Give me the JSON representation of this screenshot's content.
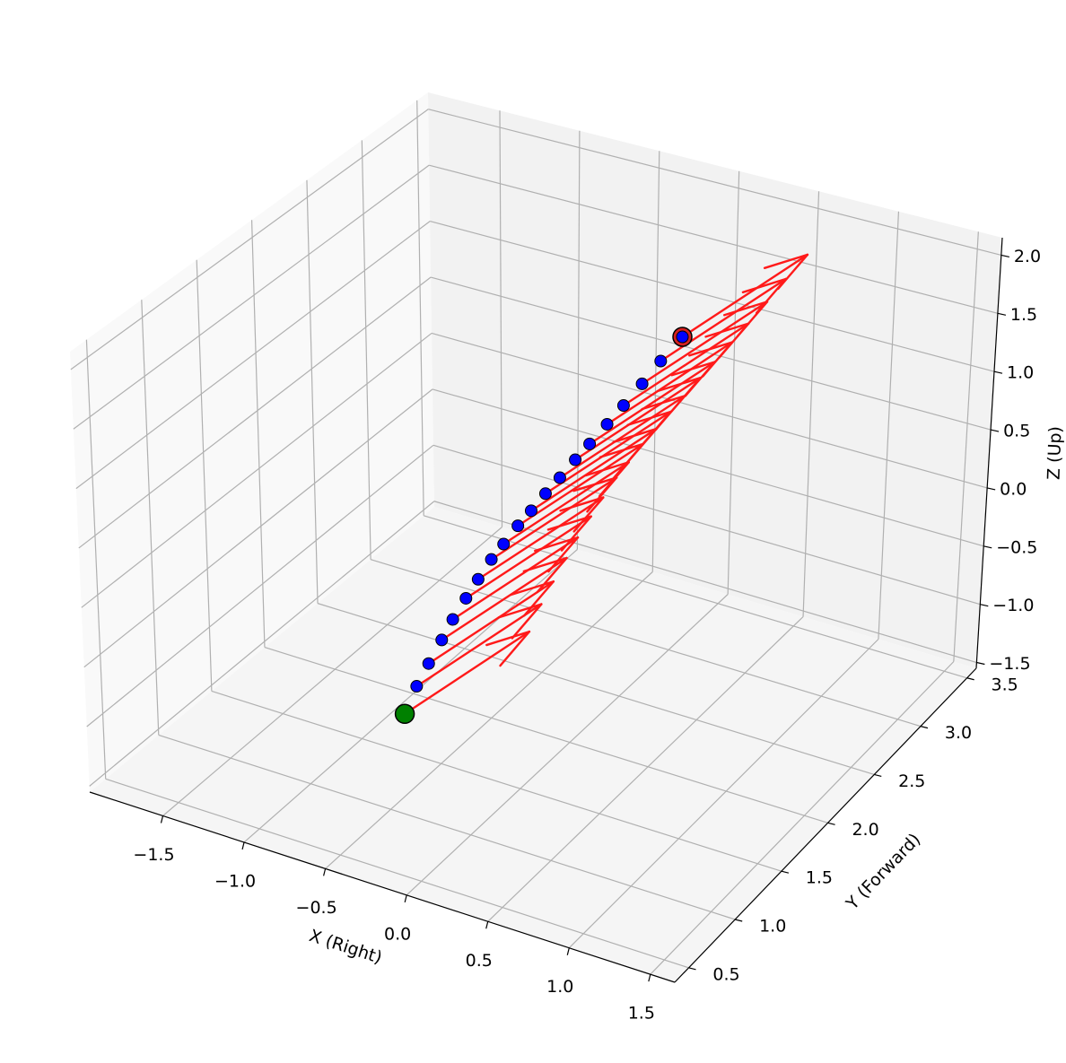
{
  "chart_data": {
    "type": "scatter3d",
    "xlabel": "X (Right)",
    "ylabel": "Y (Forward)",
    "zlabel": "Z (Up)",
    "xlim": [
      -1.95,
      1.65
    ],
    "ylim": [
      0.35,
      3.6
    ],
    "zlim": [
      -1.55,
      2.15
    ],
    "xticks": [
      {
        "value": -1.5,
        "label": "−1.5"
      },
      {
        "value": -1,
        "label": "−1.0"
      },
      {
        "value": -0.5,
        "label": "−0.5"
      },
      {
        "value": 0,
        "label": "0.0"
      },
      0.5,
      {
        "value": 1,
        "label": "1.0"
      },
      1.5
    ],
    "yticks": [
      0.5,
      {
        "value": 1,
        "label": "1.0"
      },
      1.5,
      {
        "value": 2,
        "label": "2.0"
      },
      2.5,
      {
        "value": 3,
        "label": "3.0"
      },
      3.5
    ],
    "zticks": [
      {
        "value": -1.5,
        "label": "−1.5"
      },
      {
        "value": -1,
        "label": "−1.0"
      },
      {
        "value": -0.5,
        "label": "−0.5"
      },
      {
        "value": 0,
        "label": "0.0"
      },
      0.5,
      {
        "value": 1,
        "label": "1.0"
      },
      1.5,
      {
        "value": 2,
        "label": "2.0"
      }
    ],
    "grid": true,
    "x": [
      0,
      0,
      0,
      0,
      0,
      0,
      0,
      0,
      0,
      0,
      0,
      0,
      0,
      0,
      0,
      0,
      0,
      0,
      0,
      0
    ],
    "y": [
      0.36,
      0.48,
      0.6,
      0.73,
      0.84,
      0.97,
      1.09,
      1.22,
      1.34,
      1.48,
      1.61,
      1.75,
      1.89,
      2.04,
      2.18,
      2.35,
      2.51,
      2.69,
      2.87,
      3.08
    ],
    "z": [
      -0.05,
      0.09,
      0.19,
      0.29,
      0.38,
      0.46,
      0.53,
      0.6,
      0.64,
      0.69,
      0.72,
      0.76,
      0.79,
      0.83,
      0.86,
      0.9,
      0.94,
      0.99,
      1.05,
      1.1
    ],
    "arrow": [
      0.3,
      0.75,
      0.25
    ],
    "point_color": "#0000ff",
    "start_color": "#008000",
    "end_color": "#d62020",
    "arrow_color": "#ff1a1a"
  }
}
